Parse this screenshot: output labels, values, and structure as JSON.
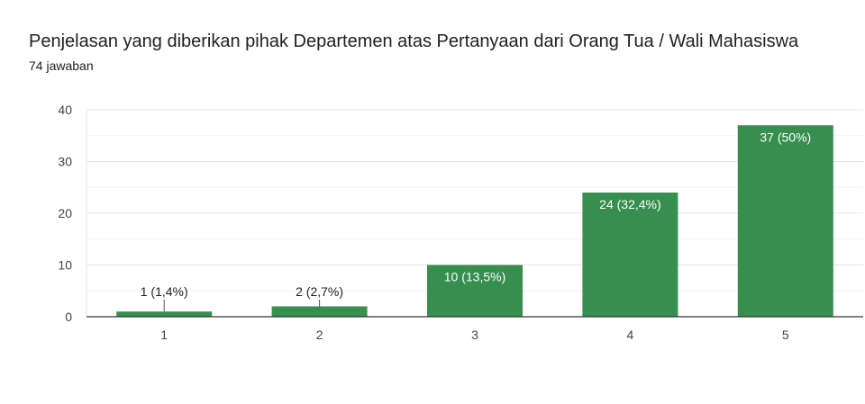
{
  "header": {
    "title": "Penjelasan yang diberikan pihak Departemen atas Pertanyaan dari Orang Tua / Wali Mahasiswa",
    "response_count": "74 jawaban"
  },
  "colors": {
    "bar": "#368f4f",
    "grid": "#e6e6e6",
    "minor_grid": "#f3f3f3",
    "axis": "#333333",
    "label_outside": "#222222",
    "label_inside": "#ffffff"
  },
  "chart_data": {
    "type": "bar",
    "title": "Penjelasan yang diberikan pihak Departemen atas Pertanyaan dari Orang Tua / Wali Mahasiswa",
    "subtitle": "74 jawaban",
    "categories": [
      "1",
      "2",
      "3",
      "4",
      "5"
    ],
    "values": [
      1,
      2,
      10,
      24,
      37
    ],
    "data_labels": [
      "1 (1,4%)",
      "2 (2,7%)",
      "10 (13,5%)",
      "24 (32,4%)",
      "37 (50%)"
    ],
    "ylim": [
      0,
      40
    ],
    "yticks": [
      "0",
      "10",
      "20",
      "30",
      "40"
    ],
    "xlabel": "",
    "ylabel": "",
    "grid": true,
    "legend": "none"
  }
}
